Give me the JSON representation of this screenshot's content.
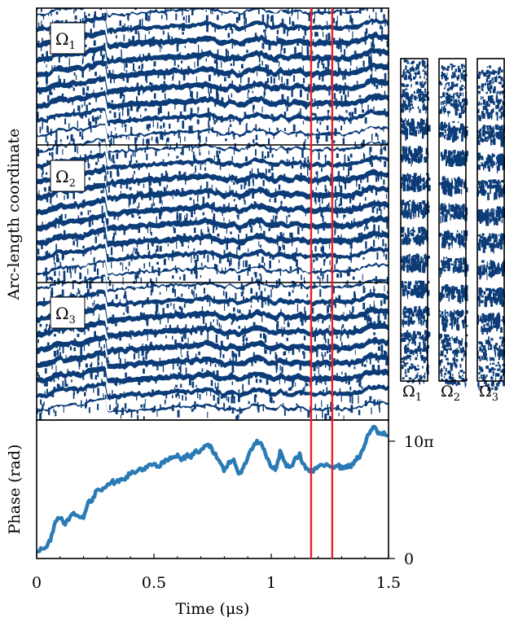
{
  "colors": {
    "stripe": "#0c3c78",
    "background": "#ffffff",
    "phase_line": "#2a7ab5",
    "marker": "#e8202a",
    "frame": "#000000"
  },
  "chart_data": [
    {
      "type": "heatmap",
      "description_of_layout": "three stacked kymograph panels sharing time axis",
      "ylabel": "Arc-length coordinate",
      "xlim": [
        0,
        1.5
      ],
      "panels": [
        {
          "label": "Ω",
          "sub": "1"
        },
        {
          "label": "Ω",
          "sub": "2"
        },
        {
          "label": "Ω",
          "sub": "3"
        }
      ],
      "stripe_count_per_panel": 9,
      "markers_x": [
        1.17,
        1.26
      ]
    },
    {
      "type": "heatmap",
      "inset_strips": [
        {
          "label": "Ω",
          "sub": "1"
        },
        {
          "label": "Ω",
          "sub": "2"
        },
        {
          "label": "Ω",
          "sub": "3"
        }
      ]
    },
    {
      "type": "line",
      "xlabel": "Time (μs)",
      "ylabel": "Phase (rad)",
      "xlim": [
        0,
        1.5
      ],
      "ylim": [
        0,
        11.8
      ],
      "xticks": [
        0,
        0.5,
        1,
        1.5
      ],
      "xtick_labels": [
        "0",
        "0.5",
        "1",
        "1.5"
      ],
      "right_yticks": [
        0,
        10
      ],
      "right_ytick_labels": [
        "0",
        "10π"
      ],
      "series": [
        {
          "x": [
            0,
            0.02,
            0.04,
            0.06,
            0.08,
            0.1,
            0.12,
            0.14,
            0.16,
            0.18,
            0.2,
            0.22,
            0.24,
            0.26,
            0.28,
            0.3,
            0.32,
            0.34,
            0.36,
            0.38,
            0.4,
            0.42,
            0.44,
            0.46,
            0.48,
            0.5,
            0.52,
            0.54,
            0.56,
            0.58,
            0.6,
            0.62,
            0.64,
            0.66,
            0.68,
            0.7,
            0.72,
            0.74,
            0.76,
            0.78,
            0.8,
            0.82,
            0.84,
            0.86,
            0.88,
            0.9,
            0.92,
            0.94,
            0.96,
            0.98,
            1.0,
            1.02,
            1.04,
            1.06,
            1.08,
            1.1,
            1.12,
            1.14,
            1.16,
            1.18,
            1.2,
            1.22,
            1.24,
            1.26,
            1.28,
            1.3,
            1.32,
            1.34,
            1.36,
            1.38,
            1.4,
            1.42,
            1.44,
            1.46,
            1.48,
            1.5
          ],
          "y": [
            0.6,
            0.8,
            0.9,
            1.7,
            3.2,
            3.6,
            3.0,
            3.4,
            3.9,
            3.5,
            3.6,
            4.8,
            5.0,
            6.0,
            5.9,
            6.3,
            6.6,
            6.4,
            6.9,
            6.8,
            7.4,
            7.2,
            7.7,
            7.6,
            7.9,
            8.0,
            7.8,
            8.2,
            8.4,
            8.6,
            8.9,
            8.4,
            8.8,
            8.7,
            9.2,
            9.1,
            9.8,
            9.6,
            8.9,
            8.1,
            7.5,
            8.2,
            8.5,
            7.0,
            7.8,
            8.6,
            9.5,
            10.0,
            9.8,
            8.6,
            7.9,
            7.5,
            9.2,
            8.0,
            7.7,
            8.4,
            8.9,
            7.9,
            7.5,
            7.4,
            7.9,
            7.8,
            8.1,
            7.8,
            8.0,
            7.7,
            7.9,
            7.8,
            8.5,
            8.7,
            9.8,
            10.8,
            11.2,
            10.6,
            10.7,
            10.2
          ]
        }
      ]
    }
  ]
}
